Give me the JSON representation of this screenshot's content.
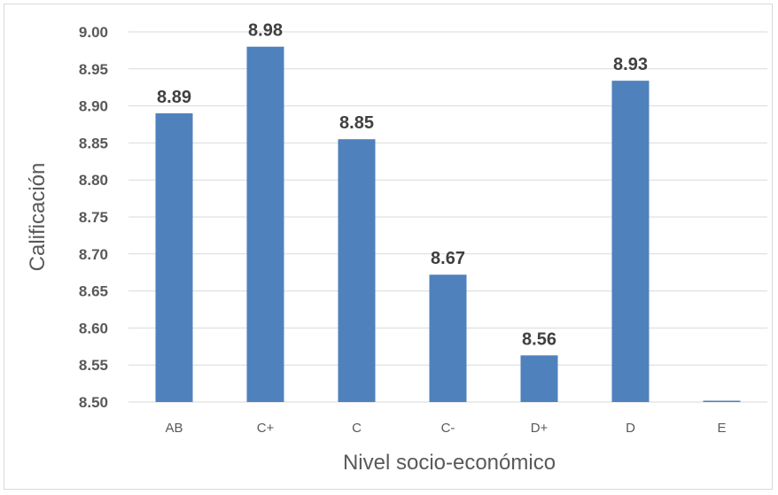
{
  "chart_data": {
    "type": "bar",
    "title": "",
    "xlabel": "Nivel socio-económico",
    "ylabel": "Calificación",
    "ylim": [
      8.5,
      9.0
    ],
    "ytick_step": 0.05,
    "yticks": [
      "8.50",
      "8.55",
      "8.60",
      "8.65",
      "8.70",
      "8.75",
      "8.80",
      "8.85",
      "8.90",
      "8.95",
      "9.00"
    ],
    "categories": [
      "AB",
      "C+",
      "C",
      "C-",
      "D+",
      "D",
      "E"
    ],
    "values": [
      8.89,
      8.98,
      8.855,
      8.672,
      8.563,
      8.934,
      8.5
    ],
    "data_labels": [
      "8.89",
      "8.98",
      "8.85",
      "8.67",
      "8.56",
      "8.93",
      ""
    ],
    "grid": true,
    "legend": "none",
    "colors": {
      "bar": "#4F81BD",
      "grid": "#d9d9d9",
      "text": "#595959",
      "label": "#404040"
    }
  }
}
